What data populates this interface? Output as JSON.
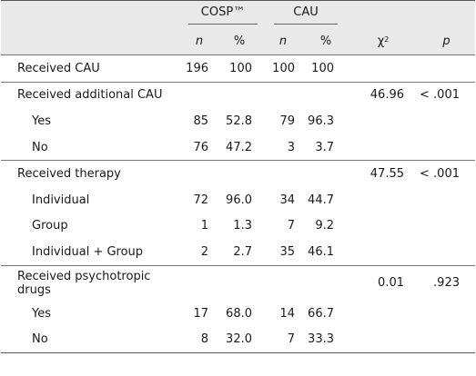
{
  "header": {
    "group1": "COSP™",
    "group2": "CAU",
    "n": "n",
    "pct": "%",
    "chi": "χ",
    "chi_sup": "2",
    "p": "p"
  },
  "rows": [
    {
      "label": "Received CAU",
      "n1": "196",
      "p1": "100",
      "n2": "100",
      "p2": "100",
      "chi": "",
      "p": ""
    },
    {
      "label": "Received additional CAU",
      "n1": "",
      "p1": "",
      "n2": "",
      "p2": "",
      "chi": "46.96",
      "p": "< .001"
    },
    {
      "label": "Yes",
      "n1": "85",
      "p1": "52.8",
      "n2": "79",
      "p2": "96.3",
      "chi": "",
      "p": ""
    },
    {
      "label": "No",
      "n1": "76",
      "p1": "47.2",
      "n2": "3",
      "p2": "3.7",
      "chi": "",
      "p": ""
    },
    {
      "label": "Received therapy",
      "n1": "",
      "p1": "",
      "n2": "",
      "p2": "",
      "chi": "47.55",
      "p": "< .001"
    },
    {
      "label": "Individual",
      "n1": "72",
      "p1": "96.0",
      "n2": "34",
      "p2": "44.7",
      "chi": "",
      "p": ""
    },
    {
      "label": "Group",
      "n1": "1",
      "p1": "1.3",
      "n2": "7",
      "p2": "9.2",
      "chi": "",
      "p": ""
    },
    {
      "label": "Individual + Group",
      "n1": "2",
      "p1": "2.7",
      "n2": "35",
      "p2": "46.1",
      "chi": "",
      "p": ""
    },
    {
      "label": "Received psychotropic drugs",
      "n1": "",
      "p1": "",
      "n2": "",
      "p2": "",
      "chi": "0.01",
      "p": ".923"
    },
    {
      "label": "Yes",
      "n1": "17",
      "p1": "68.0",
      "n2": "14",
      "p2": "66.7",
      "chi": "",
      "p": ""
    },
    {
      "label": "No",
      "n1": "8",
      "p1": "32.0",
      "n2": "7",
      "p2": "33.3",
      "chi": "",
      "p": ""
    }
  ],
  "colors": {
    "header_bg": "#e9e9e9",
    "rule": "#555555"
  }
}
